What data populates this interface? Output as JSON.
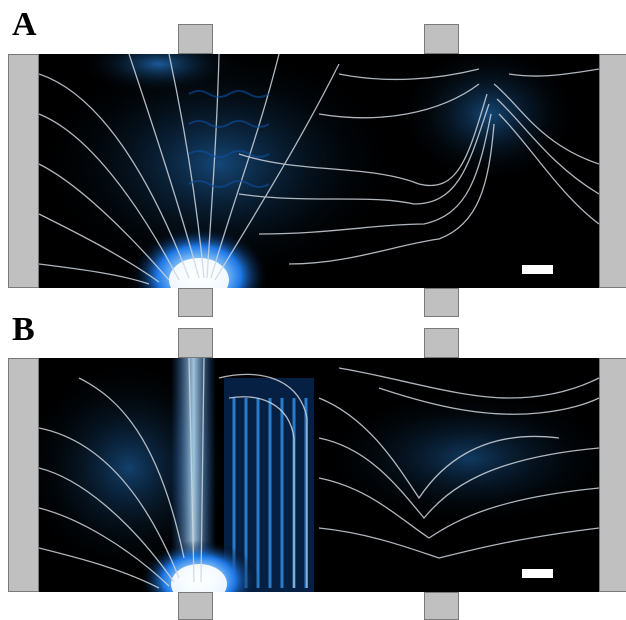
{
  "panels": [
    {
      "label": "A"
    },
    {
      "label": "B"
    }
  ],
  "colors": {
    "background": "#000000",
    "field_glow": "#1e8cff",
    "field_hot": "#ffffff",
    "streamline": "#d8d8d8",
    "device_gray": "#c0c0c0"
  }
}
